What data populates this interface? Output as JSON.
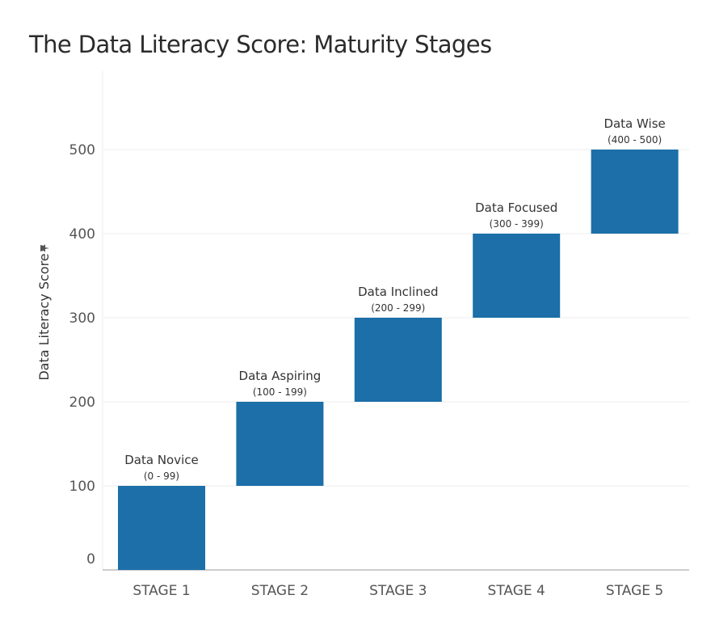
{
  "title": "The Data Literacy Score: Maturity Stages",
  "colors": {
    "bar": "#1c6fa8",
    "gridline": "#eeeeee",
    "axis": "#bbbbbb"
  },
  "chart_data": {
    "type": "bar",
    "subtype": "floating-range",
    "title": "The Data Literacy Score: Maturity Stages",
    "xlabel": "",
    "ylabel": "Data Literacy Score",
    "ylabel_icon": "pin-icon",
    "ylim": [
      0,
      580
    ],
    "yticks": [
      0,
      100,
      200,
      300,
      400,
      500
    ],
    "grid": true,
    "legend": "none",
    "categories": [
      "STAGE 1",
      "STAGE 2",
      "STAGE 3",
      "STAGE 4",
      "STAGE 5"
    ],
    "bars": [
      {
        "category": "STAGE 1",
        "start": 0,
        "end": 100,
        "label": "Data Novice",
        "range": "(0 - 99)"
      },
      {
        "category": "STAGE 2",
        "start": 100,
        "end": 200,
        "label": "Data Aspiring",
        "range": "(100 - 199)"
      },
      {
        "category": "STAGE 3",
        "start": 200,
        "end": 300,
        "label": "Data Inclined",
        "range": "(200 - 299)"
      },
      {
        "category": "STAGE 4",
        "start": 300,
        "end": 400,
        "label": "Data Focused",
        "range": "(300 - 399)"
      },
      {
        "category": "STAGE 5",
        "start": 400,
        "end": 500,
        "label": "Data Wise",
        "range": "(400 - 500)"
      }
    ]
  }
}
